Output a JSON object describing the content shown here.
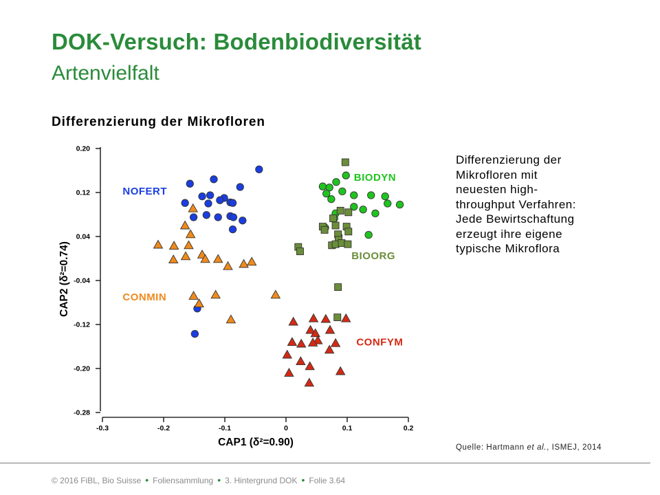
{
  "slide": {
    "title": "DOK-Versuch: Bodenbiodiversität",
    "subtitle": "Artenvielfalt",
    "section_heading": "Differenzierung der Mikrofloren"
  },
  "description": {
    "lines": [
      "Differenzierung der",
      "Mikrofloren mit",
      "neuesten high-",
      "throughput Verfahren:",
      "Jede Bewirtschaftung",
      "erzeugt ihre eigene",
      "typische Mikroflora"
    ]
  },
  "source": {
    "prefix": "Quelle: Hartmann ",
    "italic": "et al.",
    "suffix": ", ISMEJ, 2014"
  },
  "footer": {
    "items": [
      "© 2016 FiBL, Bio Suisse",
      "Foliensammlung",
      "3. Hintergrund DOK",
      "Folie 3.64"
    ]
  },
  "chart_data": {
    "type": "scatter",
    "xlabel": "CAP1 (δ²=0.90)",
    "ylabel": "CAP2 (δ²=0.74)",
    "xlim": [
      -0.3,
      0.2
    ],
    "ylim": [
      -0.28,
      0.2
    ],
    "x_ticks": [
      "-0.3",
      "-0.2",
      "-0.1",
      "0",
      "0.1",
      "0.2"
    ],
    "y_ticks": [
      "0.20",
      "0.12",
      "0.04",
      "-0.04",
      "-0.12",
      "-0.20",
      "-0.28"
    ],
    "grid": false,
    "colors": {
      "NOFERT": "#1a3ee0",
      "BIODYN": "#1fc41f",
      "BIOORG": "#6b8e3a",
      "CONMIN": "#f08a1c",
      "CONFYM": "#d42a14"
    },
    "series": [
      {
        "name": "NOFERT",
        "marker": "circle",
        "points": [
          [
            -0.044,
            0.162
          ],
          [
            -0.157,
            0.136
          ],
          [
            -0.118,
            0.144
          ],
          [
            -0.075,
            0.13
          ],
          [
            -0.137,
            0.113
          ],
          [
            -0.124,
            0.115
          ],
          [
            -0.101,
            0.11
          ],
          [
            -0.165,
            0.101
          ],
          [
            -0.127,
            0.1
          ],
          [
            -0.091,
            0.102
          ],
          [
            -0.087,
            0.101
          ],
          [
            -0.108,
            0.106
          ],
          [
            -0.151,
            0.075
          ],
          [
            -0.13,
            0.079
          ],
          [
            -0.111,
            0.075
          ],
          [
            -0.091,
            0.077
          ],
          [
            -0.086,
            0.075
          ],
          [
            -0.071,
            0.069
          ],
          [
            -0.087,
            0.053
          ],
          [
            -0.145,
            -0.091
          ],
          [
            -0.149,
            -0.137
          ]
        ]
      },
      {
        "name": "BIODYN",
        "marker": "circle",
        "points": [
          [
            0.098,
            0.151
          ],
          [
            0.06,
            0.131
          ],
          [
            0.071,
            0.129
          ],
          [
            0.082,
            0.139
          ],
          [
            0.066,
            0.118
          ],
          [
            0.092,
            0.122
          ],
          [
            0.111,
            0.115
          ],
          [
            0.074,
            0.108
          ],
          [
            0.139,
            0.115
          ],
          [
            0.162,
            0.113
          ],
          [
            0.166,
            0.1
          ],
          [
            0.186,
            0.098
          ],
          [
            0.146,
            0.082
          ],
          [
            0.126,
            0.089
          ],
          [
            0.111,
            0.094
          ],
          [
            0.081,
            0.082
          ],
          [
            0.079,
            0.073
          ],
          [
            0.064,
            0.056
          ],
          [
            0.135,
            0.043
          ],
          [
            0.086,
            0.041
          ]
        ]
      },
      {
        "name": "BIOORG",
        "marker": "square",
        "points": [
          [
            0.097,
            0.175
          ],
          [
            0.089,
            0.087
          ],
          [
            0.077,
            0.073
          ],
          [
            0.102,
            0.084
          ],
          [
            0.06,
            0.058
          ],
          [
            0.063,
            0.052
          ],
          [
            0.081,
            0.06
          ],
          [
            0.099,
            0.058
          ],
          [
            0.085,
            0.044
          ],
          [
            0.102,
            0.049
          ],
          [
            0.086,
            0.034
          ],
          [
            0.075,
            0.024
          ],
          [
            0.081,
            0.026
          ],
          [
            0.091,
            0.028
          ],
          [
            0.101,
            0.026
          ],
          [
            0.02,
            0.021
          ],
          [
            0.023,
            0.013
          ],
          [
            0.085,
            -0.052
          ],
          [
            0.084,
            -0.107
          ]
        ]
      },
      {
        "name": "CONMIN",
        "marker": "triangle",
        "points": [
          [
            -0.152,
            0.091
          ],
          [
            -0.165,
            0.06
          ],
          [
            -0.156,
            0.044
          ],
          [
            -0.209,
            0.025
          ],
          [
            -0.183,
            0.023
          ],
          [
            -0.159,
            0.024
          ],
          [
            -0.164,
            0.004
          ],
          [
            -0.137,
            0.007
          ],
          [
            -0.132,
            -0.001
          ],
          [
            -0.056,
            -0.006
          ],
          [
            -0.184,
            -0.002
          ],
          [
            -0.111,
            -0.001
          ],
          [
            -0.095,
            -0.014
          ],
          [
            -0.069,
            -0.01
          ],
          [
            -0.017,
            -0.066
          ],
          [
            -0.151,
            -0.068
          ],
          [
            -0.115,
            -0.066
          ],
          [
            -0.142,
            -0.082
          ],
          [
            -0.09,
            -0.111
          ]
        ]
      },
      {
        "name": "CONFYM",
        "marker": "triangle",
        "points": [
          [
            0.045,
            -0.109
          ],
          [
            0.065,
            -0.11
          ],
          [
            0.098,
            -0.109
          ],
          [
            0.012,
            -0.115
          ],
          [
            0.04,
            -0.13
          ],
          [
            0.072,
            -0.13
          ],
          [
            0.048,
            -0.136
          ],
          [
            0.01,
            -0.152
          ],
          [
            0.025,
            -0.155
          ],
          [
            0.052,
            -0.149
          ],
          [
            0.081,
            -0.154
          ],
          [
            0.044,
            -0.153
          ],
          [
            0.071,
            -0.166
          ],
          [
            0.024,
            -0.187
          ],
          [
            0.002,
            -0.175
          ],
          [
            0.039,
            -0.196
          ],
          [
            0.089,
            -0.205
          ],
          [
            0.005,
            -0.208
          ],
          [
            0.038,
            -0.226
          ]
        ]
      }
    ],
    "group_labels": [
      {
        "text": "NOFERT",
        "x": -0.267,
        "y": 0.116,
        "series": "NOFERT"
      },
      {
        "text": "BIODYN",
        "x": 0.111,
        "y": 0.141,
        "series": "BIODYN"
      },
      {
        "text": "BIOORG",
        "x": 0.107,
        "y": -0.001,
        "series": "BIOORG"
      },
      {
        "text": "CONMIN",
        "x": -0.267,
        "y": -0.076,
        "series": "CONMIN"
      },
      {
        "text": "CONFYM",
        "x": 0.115,
        "y": -0.158,
        "series": "CONFYM"
      }
    ]
  }
}
